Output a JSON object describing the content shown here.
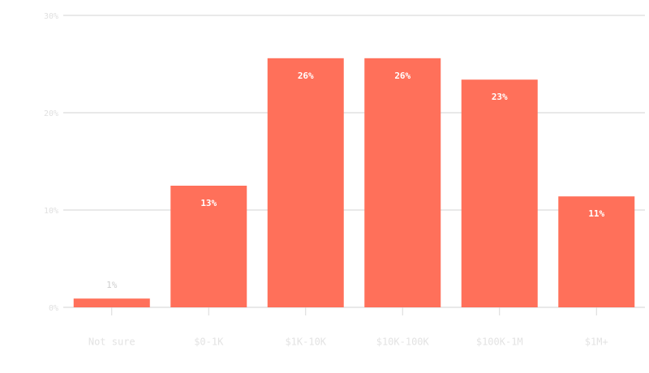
{
  "chart_data": {
    "type": "bar",
    "categories": [
      "Not sure",
      "$0-1K",
      "$1K-10K",
      "$10K-100K",
      "$100K-1M",
      "$1M+"
    ],
    "values": [
      0.9,
      12.5,
      25.6,
      25.6,
      23.4,
      11.4
    ],
    "value_labels": [
      "1%",
      "13%",
      "26%",
      "26%",
      "23%",
      "11%"
    ],
    "color": "#ff705a",
    "ylim": [
      0,
      30
    ],
    "yticks": [
      {
        "value": 0,
        "label": "0%"
      },
      {
        "value": 10,
        "label": "10%"
      },
      {
        "value": 20,
        "label": "20%"
      },
      {
        "value": 30,
        "label": "30%"
      }
    ],
    "grid": true
  }
}
